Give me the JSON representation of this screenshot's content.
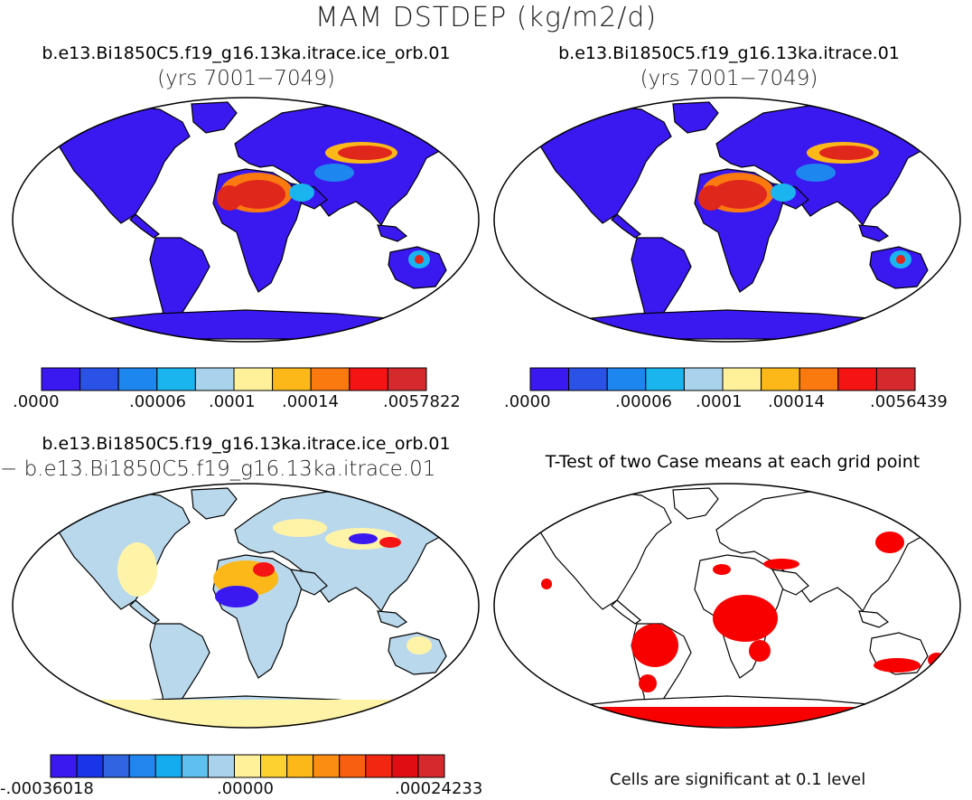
{
  "figure": {
    "title": "MAM DSTDEP (kg/m2/d)"
  },
  "panels": {
    "top_left": {
      "title": "b.e13.Bi1850C5.f19_g16.13ka.itrace.ice_orb.01",
      "subtitle": "(yrs 7001−7049)"
    },
    "top_right": {
      "title": "b.e13.Bi1850C5.f19_g16.13ka.itrace.01",
      "subtitle": "(yrs 7001−7049)"
    },
    "bottom_left": {
      "title": "b.e13.Bi1850C5.f19_g16.13ka.itrace.ice_orb.01",
      "subtitle": "− b.e13.Bi1850C5.f19_g16.13ka.itrace.01"
    },
    "bottom_right": {
      "title": "T-Test of two Case means at each grid point",
      "note": "Cells are significant at 0.1 level"
    }
  },
  "colorbars": {
    "top_left": {
      "colors": [
        "#3a19f0",
        "#2b52e6",
        "#1e86ef",
        "#1ab4ef",
        "#a9d3ec",
        "#fff19a",
        "#fbb818",
        "#fb7a10",
        "#f41414",
        "#d42a2e"
      ],
      "labels": [
        ".0000",
        ".00006",
        ".0001",
        ".00014",
        ".0057822"
      ]
    },
    "top_right": {
      "colors": [
        "#3a19f0",
        "#2b52e6",
        "#1e86ef",
        "#1ab4ef",
        "#a9d3ec",
        "#fff19a",
        "#fbb818",
        "#fb7a10",
        "#f41414",
        "#d42a2e"
      ],
      "labels": [
        ".0000",
        ".00006",
        ".0001",
        ".00014",
        ".0056439"
      ]
    },
    "bottom_left": {
      "colors": [
        "#3a19f0",
        "#1a34e8",
        "#3064e0",
        "#2186ee",
        "#14acef",
        "#5fc0ef",
        "#a9d3ec",
        "#fff19a",
        "#fdd230",
        "#fbb818",
        "#fb8d12",
        "#f95f10",
        "#f22712",
        "#e00d12",
        "#d42a2e"
      ],
      "labels": [
        "-.00036018",
        ".00000",
        ".00024233"
      ]
    }
  },
  "colors": {
    "ocean": "#ffffff",
    "land_low": "#3a19f0",
    "dust_high": "#e0271c",
    "diff_neutral": "#b9d8ec",
    "diff_positive": "#fff3a8",
    "significant": "#f80000"
  }
}
